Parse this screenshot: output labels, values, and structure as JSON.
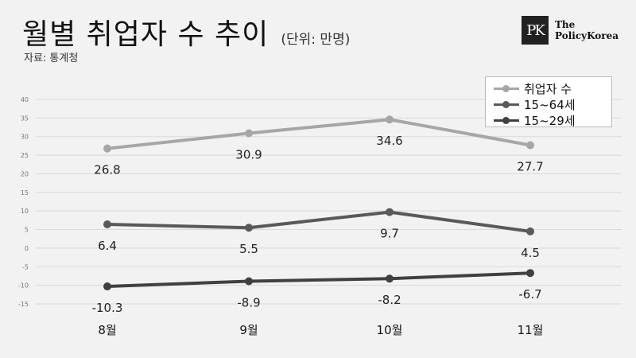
{
  "header": {
    "title": "월별 취업자 수 추이",
    "unit": "(단위: 만명)",
    "source": "자료: 통계청"
  },
  "logo": {
    "mark": "PK",
    "line1": "The",
    "line2": "PolicyKorea"
  },
  "chart_data": {
    "type": "line",
    "categories": [
      "8월",
      "9월",
      "10월",
      "11월"
    ],
    "yticks": [
      40,
      35,
      30,
      25,
      20,
      15,
      10,
      5,
      0,
      -5,
      -10,
      -15
    ],
    "ylim": [
      -15,
      40
    ],
    "grid": true,
    "legend_position": "top-right",
    "series": [
      {
        "name": "취업자 수",
        "values": [
          26.8,
          30.9,
          34.6,
          27.7
        ],
        "labels": [
          "26.8",
          "30.9",
          "34.6",
          "27.7"
        ],
        "color": "#a6a6a6"
      },
      {
        "name": "15~64세",
        "values": [
          6.4,
          5.5,
          9.7,
          4.5
        ],
        "labels": [
          "6.4",
          "5.5",
          "9.7",
          "4.5"
        ],
        "color": "#595959"
      },
      {
        "name": "15~29세",
        "values": [
          -10.3,
          -8.9,
          -8.2,
          -6.7
        ],
        "labels": [
          "-10.3",
          "-8.9",
          "-8.2",
          "-6.7"
        ],
        "color": "#404040"
      }
    ]
  }
}
